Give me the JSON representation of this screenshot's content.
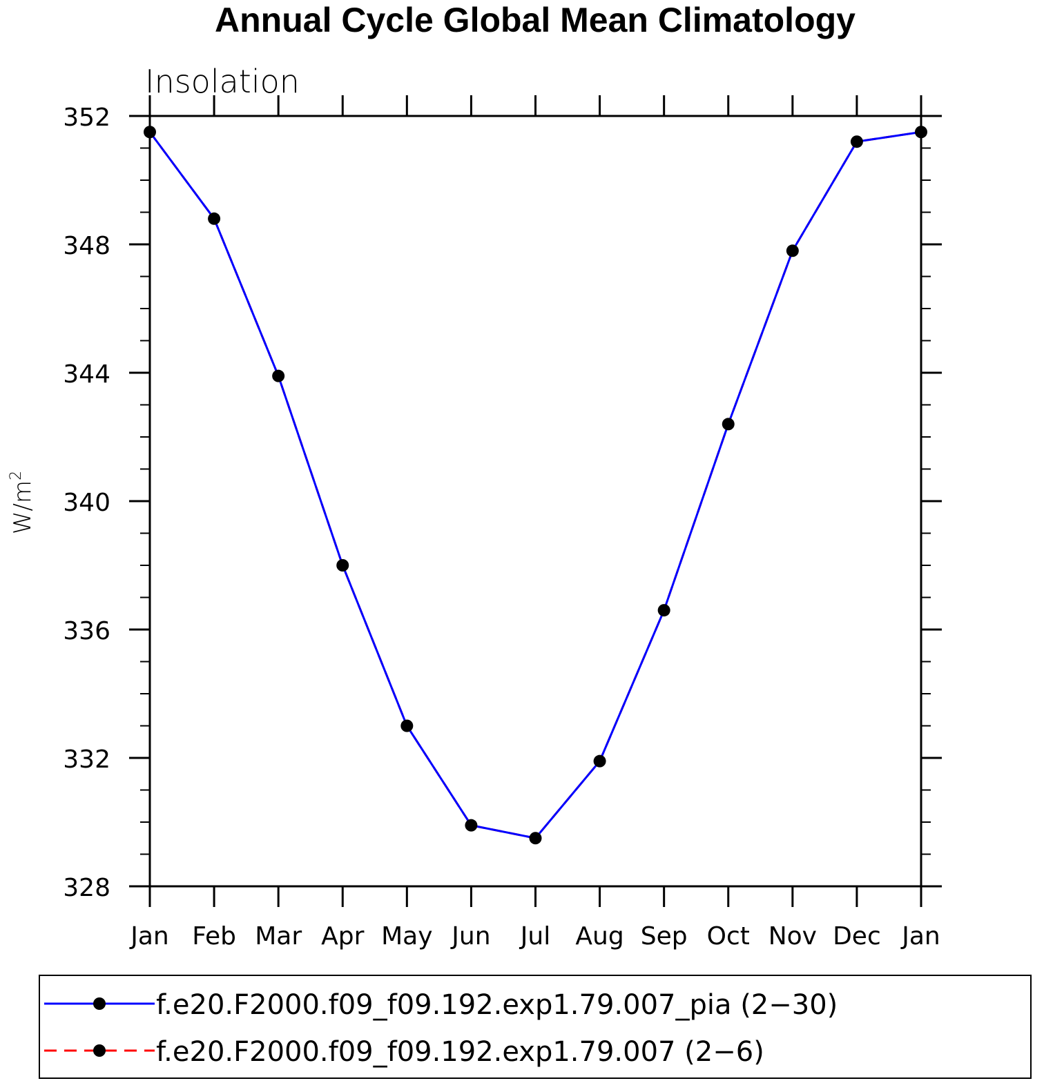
{
  "chart_data": {
    "type": "line",
    "title": "Annual Cycle Global Mean Climatology",
    "subtitle": "Insolation",
    "ylabel": "W/m",
    "ylabel_superscript": "2",
    "xlabel": "",
    "categories": [
      "Jan",
      "Feb",
      "Mar",
      "Apr",
      "May",
      "Jun",
      "Jul",
      "Aug",
      "Sep",
      "Oct",
      "Nov",
      "Dec",
      "Jan"
    ],
    "ylim": [
      328,
      352
    ],
    "yticks": [
      "328",
      "332",
      "336",
      "340",
      "344",
      "348",
      "352"
    ],
    "grid": false,
    "legend_position": "bottom",
    "series": [
      {
        "name": "f.e20.F2000.f09_f09.192.exp1.79.007_pia (2−30)",
        "color": "#0000ff",
        "dash": "solid",
        "marker": "filled-circle",
        "marker_color": "#000000",
        "values": [
          351.5,
          348.8,
          343.9,
          338.0,
          333.0,
          329.9,
          329.5,
          331.9,
          336.6,
          342.4,
          347.8,
          351.2,
          351.5
        ]
      },
      {
        "name": "f.e20.F2000.f09_f09.192.exp1.79.007 (2−6)",
        "color": "#ff0000",
        "dash": "dashed",
        "marker": "filled-circle",
        "marker_color": "#000000",
        "values": [
          351.5,
          348.8,
          343.9,
          338.0,
          333.0,
          329.9,
          329.5,
          331.9,
          336.6,
          342.4,
          347.8,
          351.2,
          351.5
        ]
      }
    ]
  }
}
